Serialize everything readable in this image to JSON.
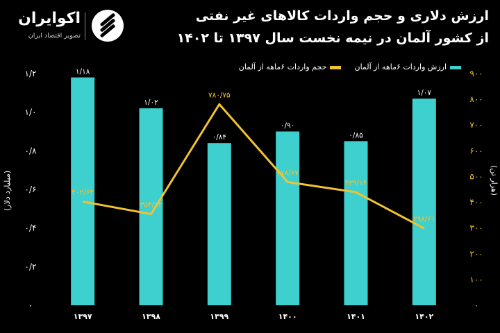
{
  "header": {
    "title_line1": "ارزش دلاری و حجم واردات کالاهای غیر نفتی",
    "title_line2": "از کشور آلمان در نیمه نخست سال ۱۳۹۷ تا ۱۴۰۲"
  },
  "logo": {
    "name": "اکوایران",
    "tagline": "تصویر اقتصاد ایران"
  },
  "colors": {
    "bar": "#3ecfcf",
    "line": "#f2c232",
    "background": "#000000",
    "text": "#ffffff"
  },
  "chart_data": {
    "type": "bar",
    "categories": [
      "۱۳۹۷",
      "۱۳۹۸",
      "۱۳۹۹",
      "۱۴۰۰",
      "۱۴۰۱",
      "۱۴۰۲"
    ],
    "ylabel": "(میلیارد دلار)",
    "y2label": "(هزار تن)",
    "ylim": [
      0,
      1.2
    ],
    "y2lim": [
      0,
      900
    ],
    "y_ticks": [
      {
        "value": 0,
        "label": "۰"
      },
      {
        "value": 0.2,
        "label": "۰/۲"
      },
      {
        "value": 0.4,
        "label": "۰/۴"
      },
      {
        "value": 0.6,
        "label": "۰/۶"
      },
      {
        "value": 0.8,
        "label": "۰/۸"
      },
      {
        "value": 1.0,
        "label": "۱/۰"
      },
      {
        "value": 1.2,
        "label": "۱/۲"
      }
    ],
    "y2_ticks": [
      {
        "value": 0,
        "label": "۰"
      },
      {
        "value": 100,
        "label": "۱۰۰"
      },
      {
        "value": 200,
        "label": "۲۰۰"
      },
      {
        "value": 300,
        "label": "۳۰۰"
      },
      {
        "value": 400,
        "label": "۴۰۰"
      },
      {
        "value": 500,
        "label": "۵۰۰"
      },
      {
        "value": 600,
        "label": "۶۰۰"
      },
      {
        "value": 700,
        "label": "۷۰۰"
      },
      {
        "value": 800,
        "label": "۸۰۰"
      },
      {
        "value": 900,
        "label": "۹۰۰"
      }
    ],
    "legend_position": "top-right",
    "series": [
      {
        "name": "ارزش واردات ۶ماهه از آلمان",
        "type": "bar",
        "axis": "left",
        "values": [
          1.18,
          1.02,
          0.84,
          0.9,
          0.85,
          1.07
        ],
        "labels": [
          "۱/۱۸",
          "۱/۰۲",
          "۰/۸۴",
          "۰/۹۰",
          "۰/۸۵",
          "۱/۰۷"
        ]
      },
      {
        "name": "حجم واردات ۶ماهه از آلمان",
        "type": "line",
        "axis": "right",
        "values": [
          402.64,
          354.12,
          780.75,
          478.67,
          439.14,
          298.61
        ],
        "labels": [
          "۴۰۲/۶۴",
          "۳۵۴/۱۲",
          "۷۸۰/۷۵",
          "۴۷۸/۶۷",
          "۴۳۹/۱۴",
          "۲۹۸/۶۱"
        ]
      }
    ]
  }
}
